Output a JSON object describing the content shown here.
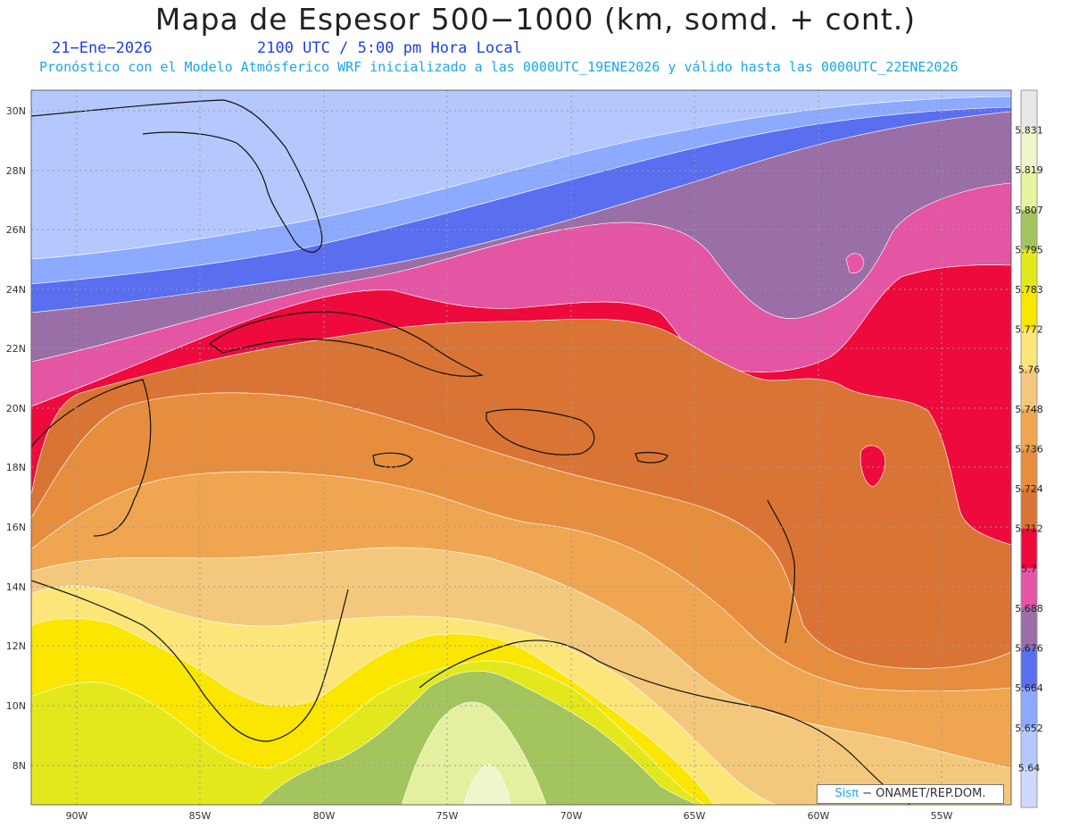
{
  "header": {
    "title": "Mapa de Espesor 500−1000 (km, somd. + cont.)",
    "date": "21−Ene−2026",
    "time": "2100 UTC / 5:00 pm Hora Local",
    "subtitle": "Pronóstico con el Modelo Atmósferico WRF inicializado a las 0000UTC_19ENE2026 y válido hasta las  0000UTC_22ENE2026"
  },
  "map": {
    "lon_range": [
      -92,
      -52
    ],
    "lat_range": [
      6.7,
      30.5
    ],
    "lat_labels": [
      "30N",
      "28N",
      "26N",
      "24N",
      "22N",
      "20N",
      "18N",
      "16N",
      "14N",
      "12N",
      "10N",
      "8N"
    ],
    "lon_labels": [
      "90W",
      "85W",
      "80W",
      "75W",
      "70W",
      "65W",
      "60W",
      "55W"
    ],
    "gridlines": true,
    "colors": {
      "5.64": "#b4c8ff",
      "5.652": "#8caaff",
      "5.664": "#5a6ef0",
      "5.676": "#9a6ea6",
      "5.688": "#e455a4",
      "5.7": "#ee0a3c",
      "5.712": "#da7434",
      "5.724": "#e68e3e",
      "5.736": "#f0a650",
      "5.748": "#f4c87c",
      "5.76": "#fce67a",
      "5.772": "#fae600",
      "5.783": "#e3e81c",
      "5.795": "#a4c45e",
      "5.807": "#e4f0a0",
      "5.819": "#f0f6cc",
      "5.831": "#e6e6e6"
    }
  },
  "legend": {
    "labels": [
      "5.831",
      "5.819",
      "5.807",
      "5.795",
      "5.783",
      "5.772",
      "5.76",
      "5.748",
      "5.736",
      "5.724",
      "5.712",
      "5.7",
      "5.688",
      "5.676",
      "5.664",
      "5.652",
      "5.64"
    ],
    "colors": [
      "#e8e8e8",
      "#f0f6cc",
      "#e6f4a0",
      "#a4c45e",
      "#e3e81c",
      "#fae600",
      "#fce67a",
      "#f4c87c",
      "#f0a650",
      "#e68e3e",
      "#da7434",
      "#ee0a3c",
      "#e455a4",
      "#9a6ea6",
      "#5a6ef0",
      "#8caaff",
      "#b4c8ff",
      "#cfd8ff"
    ]
  },
  "credit": {
    "sis": "Sisπ",
    "rest": "− ONAMET/REP.DOM."
  }
}
